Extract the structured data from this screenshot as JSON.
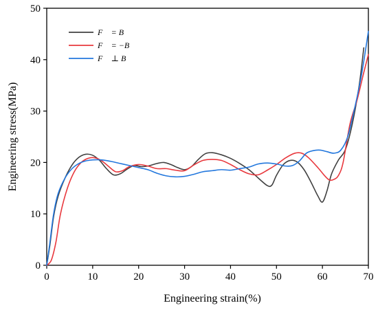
{
  "chart_data": {
    "type": "line",
    "xlabel": "Engineering strain(%)",
    "ylabel": "Engineering stress(MPa)",
    "xlim": [
      0,
      70
    ],
    "ylim": [
      0,
      50
    ],
    "x_ticks": [
      0,
      10,
      20,
      30,
      40,
      50,
      60,
      70
    ],
    "y_ticks": [
      0,
      10,
      20,
      30,
      40,
      50
    ],
    "grid": false,
    "legend_position": "top-left",
    "series": [
      {
        "name": "F⃗ = B⃗",
        "color": "#404040",
        "points": [
          [
            0,
            0
          ],
          [
            0.7,
            4
          ],
          [
            1.5,
            9.5
          ],
          [
            2.5,
            13.5
          ],
          [
            4,
            17
          ],
          [
            5.5,
            19.5
          ],
          [
            7,
            21
          ],
          [
            8.5,
            21.6
          ],
          [
            10,
            21.4
          ],
          [
            11.5,
            20.4
          ],
          [
            13,
            18.8
          ],
          [
            14.5,
            17.6
          ],
          [
            16,
            17.8
          ],
          [
            17.5,
            18.7
          ],
          [
            19,
            19.4
          ],
          [
            20.5,
            19.2
          ],
          [
            22,
            19.3
          ],
          [
            24,
            19.8
          ],
          [
            25.5,
            20
          ],
          [
            27,
            19.6
          ],
          [
            28.5,
            19
          ],
          [
            30,
            18.6
          ],
          [
            31.5,
            19.2
          ],
          [
            33,
            20.6
          ],
          [
            34.5,
            21.7
          ],
          [
            36,
            21.9
          ],
          [
            38,
            21.5
          ],
          [
            40,
            20.8
          ],
          [
            42,
            19.8
          ],
          [
            44,
            18.6
          ],
          [
            46,
            17
          ],
          [
            48,
            15.5
          ],
          [
            49,
            15.6
          ],
          [
            50,
            17.5
          ],
          [
            51.5,
            19.6
          ],
          [
            53,
            20.4
          ],
          [
            54.5,
            20.1
          ],
          [
            56,
            18.6
          ],
          [
            57.5,
            16.2
          ],
          [
            59,
            13.5
          ],
          [
            60,
            12.3
          ],
          [
            61,
            14.5
          ],
          [
            62,
            17.8
          ],
          [
            63.5,
            20.5
          ],
          [
            65,
            22.5
          ],
          [
            66.5,
            27.5
          ],
          [
            68,
            35
          ],
          [
            69,
            42.3
          ]
        ]
      },
      {
        "name": "F⃗ = −B⃗",
        "color": "#e8383d",
        "points": [
          [
            0,
            0
          ],
          [
            1,
            1
          ],
          [
            2,
            4.5
          ],
          [
            3,
            10
          ],
          [
            4.5,
            15
          ],
          [
            6,
            18.2
          ],
          [
            7.5,
            20
          ],
          [
            9,
            20.8
          ],
          [
            10.5,
            20.9
          ],
          [
            12,
            20.3
          ],
          [
            13.5,
            19.2
          ],
          [
            15,
            18.2
          ],
          [
            16.5,
            18.4
          ],
          [
            18,
            19.2
          ],
          [
            20,
            19.6
          ],
          [
            22,
            19.3
          ],
          [
            24,
            18.8
          ],
          [
            26,
            18.8
          ],
          [
            28,
            18.5
          ],
          [
            30,
            18.4
          ],
          [
            32,
            19.5
          ],
          [
            34,
            20.4
          ],
          [
            36,
            20.6
          ],
          [
            38,
            20.4
          ],
          [
            40,
            19.6
          ],
          [
            42,
            18.6
          ],
          [
            44,
            17.8
          ],
          [
            46,
            17.6
          ],
          [
            48,
            18.5
          ],
          [
            50,
            19.6
          ],
          [
            52,
            20.9
          ],
          [
            54,
            21.8
          ],
          [
            55.5,
            21.8
          ],
          [
            57,
            20.9
          ],
          [
            59,
            19
          ],
          [
            60.5,
            17.4
          ],
          [
            61.5,
            16.6
          ],
          [
            62.5,
            16.7
          ],
          [
            63.5,
            17.5
          ],
          [
            64.5,
            20
          ],
          [
            66,
            27.5
          ],
          [
            67.5,
            32
          ],
          [
            69,
            37.5
          ],
          [
            70,
            41
          ]
        ]
      },
      {
        "name": "F⃗ ⊥ B⃗",
        "color": "#2277dd",
        "points": [
          [
            0,
            0
          ],
          [
            0.7,
            4.5
          ],
          [
            1.5,
            10
          ],
          [
            2.5,
            14
          ],
          [
            4,
            17
          ],
          [
            5.5,
            18.8
          ],
          [
            7,
            19.8
          ],
          [
            8.5,
            20.3
          ],
          [
            10,
            20.5
          ],
          [
            12,
            20.5
          ],
          [
            14,
            20.2
          ],
          [
            16,
            19.8
          ],
          [
            18,
            19.4
          ],
          [
            20,
            19
          ],
          [
            22,
            18.6
          ],
          [
            24,
            17.9
          ],
          [
            26,
            17.4
          ],
          [
            28,
            17.2
          ],
          [
            30,
            17.3
          ],
          [
            32,
            17.7
          ],
          [
            34,
            18.2
          ],
          [
            36,
            18.4
          ],
          [
            38,
            18.6
          ],
          [
            40,
            18.5
          ],
          [
            42,
            18.8
          ],
          [
            44,
            19.1
          ],
          [
            46,
            19.7
          ],
          [
            48,
            19.9
          ],
          [
            50,
            19.7
          ],
          [
            52,
            19.3
          ],
          [
            53.5,
            19.4
          ],
          [
            55,
            20.3
          ],
          [
            56.5,
            21.8
          ],
          [
            58,
            22.3
          ],
          [
            59.5,
            22.4
          ],
          [
            61,
            22.1
          ],
          [
            62.5,
            21.8
          ],
          [
            64,
            22.4
          ],
          [
            65.5,
            25
          ],
          [
            67,
            30.5
          ],
          [
            68.5,
            37
          ],
          [
            70,
            45.5
          ]
        ]
      }
    ]
  }
}
